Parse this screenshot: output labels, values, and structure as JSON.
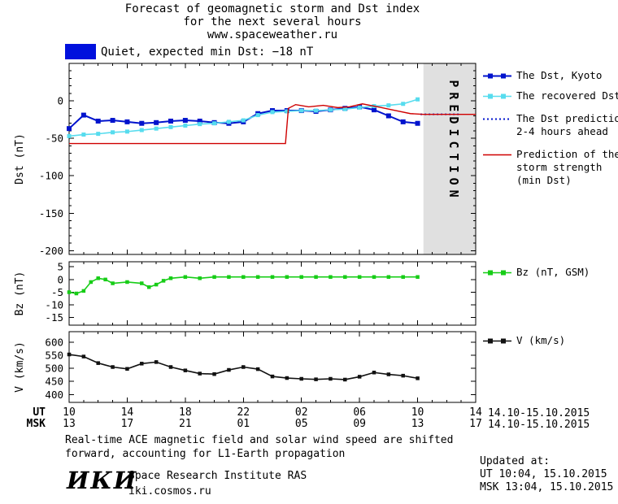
{
  "title": {
    "line1": "Forecast of geomagnetic storm and Dst index",
    "line2": "for the next several hours",
    "line3": "www.spaceweather.ru"
  },
  "status": {
    "text": "Quiet, expected min Dst: −18 nT",
    "level_color": "#0010dd"
  },
  "chart_data": [
    {
      "type": "line",
      "ylabel": "Dst (nT)",
      "xlim": [
        10,
        38
      ],
      "ylim": [
        -205,
        50
      ],
      "yticks": [
        0,
        -50,
        -100,
        -150,
        -200
      ],
      "ytick_minor": 10,
      "xticks": [
        10,
        14,
        18,
        22,
        26,
        30,
        34,
        38
      ],
      "xtick_minor": 1,
      "zone": {
        "from": 34.4,
        "to": 38,
        "label": "PREDICTION",
        "color": "#e0e0e0",
        "text_color": "#b9b9b9"
      },
      "series": [
        {
          "name": "The Dst, Kyoto",
          "color": "#0013cd",
          "width": 2,
          "marker": true,
          "marker_size": 6,
          "x": [
            10,
            11,
            12,
            13,
            14,
            15,
            16,
            17,
            18,
            19,
            20,
            21,
            22,
            23,
            24,
            25,
            26,
            27,
            28,
            29,
            30,
            31,
            32,
            33,
            34
          ],
          "y": [
            -37,
            -19,
            -27,
            -26,
            -28,
            -30,
            -29,
            -27,
            -26,
            -27,
            -29,
            -30,
            -28,
            -17,
            -13,
            -13,
            -13,
            -14,
            -12,
            -10,
            -8,
            -12,
            -20,
            -28,
            -30
          ]
        },
        {
          "name": "The recovered Dst",
          "color": "#57dcee",
          "width": 1.6,
          "marker": true,
          "marker_size": 5,
          "x": [
            10,
            11,
            12,
            13,
            14,
            15,
            16,
            17,
            18,
            19,
            20,
            21,
            22,
            23,
            24,
            25,
            26,
            27,
            28,
            29,
            30,
            31,
            32,
            33,
            34
          ],
          "y": [
            -47,
            -45,
            -44,
            -42,
            -41,
            -39,
            -37,
            -35,
            -33,
            -31,
            -30,
            -28,
            -26,
            -19,
            -15,
            -14,
            -13,
            -13,
            -12,
            -11,
            -9,
            -7,
            -6,
            -4,
            2
          ]
        },
        {
          "name": "The Dst prediction 2-4 hours ahead",
          "color": "#0013cd",
          "width": 2,
          "style": "dotted",
          "x": [
            34.2,
            36.9
          ],
          "y": [
            -18,
            -18
          ]
        },
        {
          "name": "Prediction of the storm strength (min Dst)",
          "color": "#cf0000",
          "width": 1.4,
          "x": [
            10,
            24.9,
            25.1,
            25.6,
            26.5,
            27.5,
            28.5,
            29.3,
            30.2,
            31.5,
            32.5,
            33.5,
            34.4,
            38
          ],
          "y": [
            -57,
            -57,
            -10,
            -5,
            -8,
            -6,
            -9,
            -8,
            -4,
            -9,
            -13,
            -17,
            -18,
            -18
          ]
        }
      ]
    },
    {
      "type": "line",
      "ylabel": "Bz (nT)",
      "xlim": [
        10,
        38
      ],
      "ylim": [
        -18,
        7
      ],
      "yticks": [
        5,
        0,
        -5,
        -10,
        -15
      ],
      "xticks": [
        10,
        14,
        18,
        22,
        26,
        30,
        34,
        38
      ],
      "xtick_minor": 1,
      "series": [
        {
          "name": "Bz (nT, GSM)",
          "color": "#17cd17",
          "width": 1.6,
          "marker": true,
          "marker_size": 4.5,
          "x": [
            10,
            10.5,
            11,
            11.5,
            12,
            12.5,
            13,
            14,
            15,
            15.5,
            16,
            16.5,
            17,
            18,
            19,
            20,
            21,
            22,
            23,
            24,
            25,
            26,
            27,
            28,
            29,
            30,
            31,
            32,
            33,
            34
          ],
          "y": [
            -5,
            -5.5,
            -4.5,
            -1,
            0.5,
            0,
            -1.5,
            -1,
            -1.5,
            -3,
            -2,
            -0.5,
            0.5,
            1,
            0.5,
            1,
            1,
            1,
            1,
            1,
            1,
            1,
            1,
            1,
            1,
            1,
            1,
            1,
            1,
            1
          ]
        }
      ]
    },
    {
      "type": "line",
      "ylabel": "V (km/s)",
      "xlim": [
        10,
        38
      ],
      "ylim": [
        370,
        640
      ],
      "yticks": [
        600,
        550,
        500,
        450,
        400
      ],
      "xticks": [
        10,
        14,
        18,
        22,
        26,
        30,
        34,
        38
      ],
      "xtick_minor": 1,
      "xaxis_rows": [
        {
          "label": "UT",
          "values": [
            "10",
            "14",
            "18",
            "22",
            "02",
            "06",
            "10",
            "14"
          ]
        },
        {
          "label": "MSK",
          "values": [
            "13",
            "17",
            "21",
            "01",
            "05",
            "09",
            "13",
            "17"
          ]
        }
      ],
      "series": [
        {
          "name": "V (km/s)",
          "color": "#111111",
          "width": 1.6,
          "marker": true,
          "marker_size": 4.5,
          "x": [
            10,
            11,
            12,
            13,
            14,
            15,
            16,
            17,
            18,
            19,
            20,
            21,
            22,
            23,
            24,
            25,
            26,
            27,
            28,
            29,
            30,
            31,
            32,
            33,
            34
          ],
          "y": [
            553,
            545,
            520,
            505,
            498,
            518,
            524,
            505,
            492,
            480,
            478,
            494,
            505,
            497,
            469,
            463,
            460,
            458,
            460,
            457,
            468,
            484,
            477,
            472,
            462
          ]
        }
      ]
    }
  ],
  "legend_dst": {
    "item1": {
      "line1": "The Dst, Kyoto"
    },
    "item2": {
      "line1": "The recovered Dst"
    },
    "item3": {
      "line1": "The Dst prediction",
      "line2": "2-4 hours ahead"
    },
    "item4": {
      "line1": "Prediction of the",
      "line2": "storm strength",
      "line3": "(min Dst)"
    }
  },
  "legend_bz": {
    "label": "Bz (nT, GSM)"
  },
  "legend_v": {
    "label": "V (km/s)"
  },
  "axis_dates": {
    "ut": "14.10-15.10.2015",
    "msk": "14.10-15.10.2015"
  },
  "footer": {
    "line1": "Real-time ACE magnetic field and solar wind speed are shifted",
    "line2": "forward, accounting for L1-Earth propagation"
  },
  "updated": {
    "heading": "Updated at:",
    "ut": "UT  10:04, 15.10.2015",
    "msk": "MSK 13:04, 15.10.2015"
  },
  "branding": {
    "logo": "ИКИ",
    "institute": "Space Research Institute RAS",
    "site": "iki.cosmos.ru"
  }
}
